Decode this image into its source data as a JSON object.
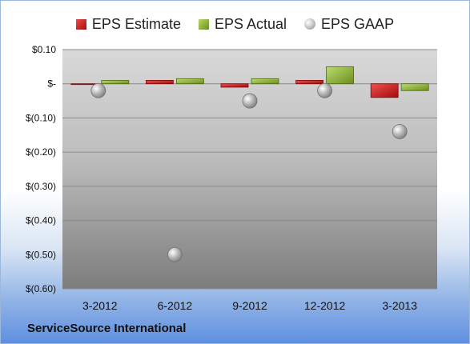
{
  "company": "ServiceSource International",
  "legend": {
    "estimate": "EPS Estimate",
    "actual": "EPS Actual",
    "gaap": "EPS GAAP"
  },
  "colors": {
    "estimate": "#c41e1e",
    "actual": "#8db03a",
    "gaap": "#a8a8a8"
  },
  "chart_data": {
    "type": "bar",
    "categories": [
      "3-2012",
      "6-2012",
      "9-2012",
      "12-2012",
      "3-2013"
    ],
    "series": [
      {
        "name": "EPS Estimate",
        "values": [
          0.0,
          0.01,
          -0.01,
          0.01,
          -0.04
        ]
      },
      {
        "name": "EPS Actual",
        "values": [
          0.01,
          0.015,
          0.015,
          0.05,
          -0.02
        ]
      },
      {
        "name": "EPS GAAP",
        "values": [
          -0.02,
          -0.5,
          -0.05,
          -0.02,
          -0.14
        ]
      }
    ],
    "ylim": [
      -0.6,
      0.1
    ],
    "yticks": [
      0.1,
      0,
      -0.1,
      -0.2,
      -0.3,
      -0.4,
      -0.5,
      -0.6
    ],
    "ytick_labels": [
      "$0.10",
      "$-",
      "$(0.10)",
      "$(0.20)",
      "$(0.30)",
      "$(0.40)",
      "$(0.50)",
      "$(0.60)"
    ],
    "legend_position": "top",
    "grid": true
  }
}
